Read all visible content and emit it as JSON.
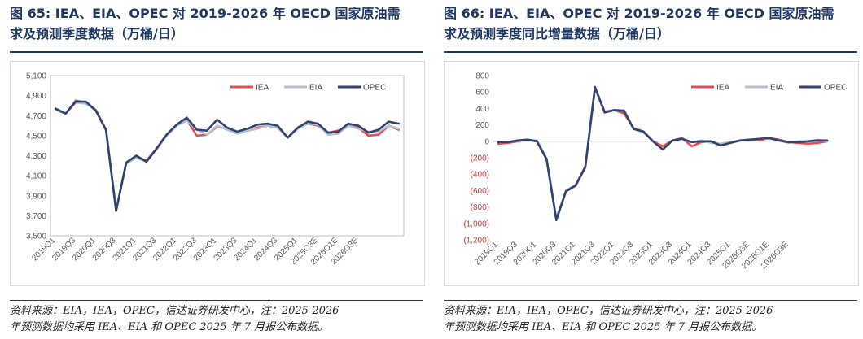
{
  "left": {
    "title_line1": "图 65:  IEA、EIA、OPEC 对 2019-2026 年 OECD 国家原油需",
    "title_line2": "求及预测季度数据（万桶/日）",
    "source_line1": "资料来源：EIA，IEA，OPEC，信达证券研发中心，注：2025-2026",
    "source_line2": "年预测数据均采用 IEA、EIA 和 OPEC 2025 年 7 月报公布数据。"
  },
  "right": {
    "title_line1": "图 66:  IEA、EIA、OPEC 对 2019-2026 年 OECD 国家原油需",
    "title_line2": "求及预测季度同比增量数据（万桶/日）",
    "source_line1": "资料来源：EIA，IEA，OPEC，信达证券研发中心，注：2025-2026",
    "source_line2": "年预测数据均采用 IEA、EIA 和 OPEC 2025 年 7 月报公布数据。"
  },
  "colors": {
    "IEA": "#ec4a4f",
    "EIA": "#b4bfcf",
    "OPEC": "#2e4370",
    "title": "#1f3864"
  },
  "chart_data": [
    {
      "type": "line",
      "ylim": [
        3500,
        5100
      ],
      "yticks": [
        "3,500",
        "3,700",
        "3,900",
        "4,100",
        "4,300",
        "4,500",
        "4,700",
        "4,900",
        "5,100"
      ],
      "ytick_values": [
        3500,
        3700,
        3900,
        4100,
        4300,
        4500,
        4700,
        4900,
        5100
      ],
      "xtick_labels": [
        "2019Q1",
        "2019Q3",
        "2020Q1",
        "2020Q3",
        "2021Q1",
        "2021Q3",
        "2022Q1",
        "2022Q3",
        "2023Q1",
        "2023Q3",
        "2024Q1",
        "2024Q3",
        "2025Q1",
        "2025Q3E",
        "2026Q1E",
        "2026Q3E"
      ],
      "legend_position": "top-right",
      "series": [
        {
          "name": "IEA",
          "values": [
            4760,
            4720,
            4850,
            4830,
            4750,
            4550,
            3750,
            4230,
            4290,
            4250,
            4370,
            4500,
            4600,
            4660,
            4500,
            4510,
            4590,
            4570,
            4540,
            4550,
            4580,
            4600,
            4580,
            4480,
            4580,
            4620,
            4600,
            4530,
            4550,
            4600,
            4580,
            4500,
            4510,
            4600,
            4560
          ]
        },
        {
          "name": "EIA",
          "values": [
            4760,
            4720,
            4830,
            4820,
            4760,
            4550,
            3760,
            4220,
            4280,
            4240,
            4360,
            4500,
            4600,
            4650,
            4560,
            4510,
            4600,
            4560,
            4520,
            4550,
            4570,
            4600,
            4580,
            4480,
            4570,
            4620,
            4610,
            4510,
            4520,
            4600,
            4570,
            4540,
            4540,
            4600,
            4570
          ]
        },
        {
          "name": "OPEC",
          "values": [
            4770,
            4720,
            4840,
            4840,
            4750,
            4560,
            3750,
            4230,
            4300,
            4240,
            4370,
            4510,
            4610,
            4680,
            4560,
            4550,
            4660,
            4580,
            4540,
            4570,
            4610,
            4620,
            4600,
            4480,
            4580,
            4640,
            4620,
            4530,
            4540,
            4620,
            4600,
            4530,
            4560,
            4640,
            4620
          ]
        }
      ]
    },
    {
      "type": "line",
      "ylim": [
        -1200,
        800
      ],
      "yticks": [
        "800",
        "600",
        "400",
        "200",
        "0",
        "(200)",
        "(400)",
        "(600)",
        "(800)",
        "(1,000)",
        "(1,200)"
      ],
      "ytick_values": [
        800,
        600,
        400,
        200,
        0,
        -200,
        -400,
        -600,
        -800,
        -1000,
        -1200
      ],
      "xtick_labels": [
        "2019Q1",
        "2019Q3",
        "2020Q1",
        "2020Q3",
        "2021Q1",
        "2021Q3",
        "2022Q1",
        "2022Q3",
        "2023Q1",
        "2023Q3",
        "2024Q1",
        "2024Q3",
        "2025Q1",
        "2025Q3E",
        "2026Q1E",
        "2026Q3E"
      ],
      "legend_position": "top-right",
      "series": [
        {
          "name": "IEA",
          "values": [
            -30,
            -20,
            0,
            20,
            0,
            -220,
            -940,
            -610,
            -540,
            -320,
            650,
            360,
            380,
            340,
            160,
            120,
            0,
            -60,
            10,
            40,
            -60,
            -10,
            0,
            -50,
            -20,
            10,
            20,
            10,
            40,
            20,
            -10,
            -20,
            -30,
            -20,
            0
          ]
        },
        {
          "name": "EIA",
          "values": [
            -10,
            -10,
            10,
            20,
            10,
            -210,
            -940,
            -600,
            -530,
            -310,
            640,
            350,
            380,
            380,
            150,
            110,
            0,
            -100,
            10,
            30,
            -10,
            10,
            -20,
            -30,
            -10,
            10,
            20,
            30,
            30,
            10,
            -20,
            0,
            0,
            20,
            0
          ]
        },
        {
          "name": "OPEC",
          "values": [
            -10,
            -10,
            10,
            20,
            0,
            -220,
            -960,
            -610,
            -540,
            -310,
            660,
            350,
            380,
            370,
            150,
            120,
            0,
            -100,
            10,
            30,
            -10,
            0,
            0,
            -50,
            -20,
            10,
            20,
            30,
            40,
            10,
            -10,
            -10,
            0,
            10,
            10
          ]
        }
      ]
    }
  ]
}
